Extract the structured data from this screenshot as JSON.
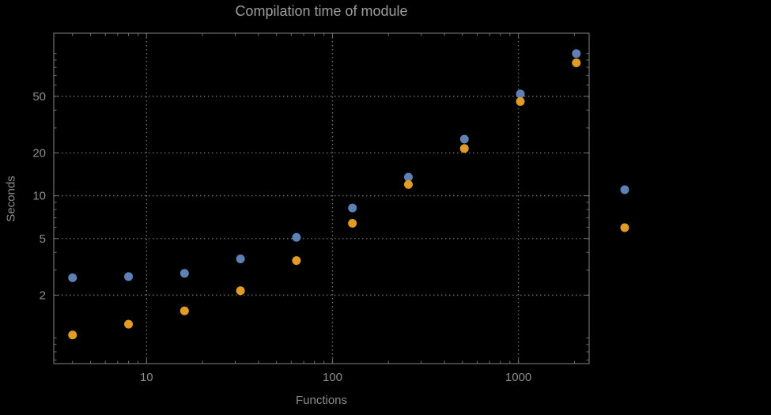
{
  "chart_data": {
    "type": "scatter",
    "title": "Compilation time of module",
    "xlabel": "Functions",
    "ylabel": "Seconds",
    "x_scale": "log",
    "y_scale": "log",
    "x": [
      4,
      8,
      16,
      32,
      64,
      128,
      256,
      512,
      1024,
      2048
    ],
    "series": [
      {
        "name": "blue",
        "color": "#5e81b5",
        "values": [
          2.65,
          2.7,
          2.85,
          3.6,
          5.1,
          8.2,
          13.5,
          25,
          52,
          100
        ]
      },
      {
        "name": "orange",
        "color": "#e19c24",
        "values": [
          1.05,
          1.25,
          1.55,
          2.15,
          3.5,
          6.4,
          12,
          21.5,
          46,
          86
        ]
      }
    ],
    "x_ticks": [
      10,
      100,
      1000
    ],
    "y_ticks": [
      2,
      5,
      10,
      20,
      50
    ],
    "xlim": [
      3.17,
      2400
    ],
    "ylim": [
      0.66,
      139
    ],
    "grid": true,
    "legend_position": "right",
    "legend_markers": [
      {
        "series": "blue",
        "color": "#5e81b5"
      },
      {
        "series": "orange",
        "color": "#e19c24"
      }
    ]
  },
  "colors": {
    "background": "#000000",
    "frame": "#6e6e6e",
    "grid": "#6a6a6a",
    "title_text": "#9e9e9e",
    "axis_text": "#8c8c8c",
    "series_blue": "#5e81b5",
    "series_orange": "#e19c24"
  }
}
